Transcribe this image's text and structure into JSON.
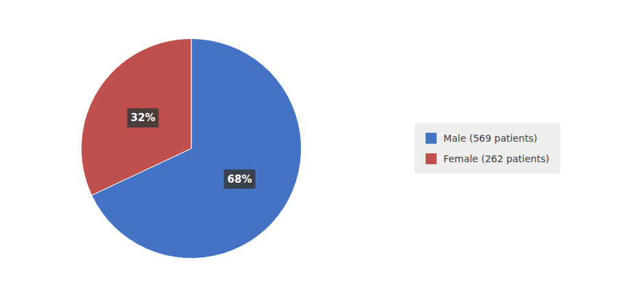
{
  "chart_data": {
    "type": "pie",
    "categories": [
      "Male (569 patients)",
      "Female (262 patients)"
    ],
    "values": [
      68,
      32
    ],
    "value_labels": [
      "68%",
      "32%"
    ],
    "colors": [
      "#4472C4",
      "#C0504D"
    ],
    "data_labels": true,
    "legend": "right"
  }
}
